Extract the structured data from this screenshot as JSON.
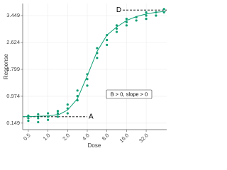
{
  "chart_data": {
    "type": "scatter",
    "x_label": "Dose",
    "y_label": "Response",
    "x_log_base": 2,
    "xlim": [
      0.41,
      66
    ],
    "ylim": [
      -0.05,
      3.82
    ],
    "xticks": [
      0.5,
      {
        "value": 1,
        "label": "1.0"
      },
      {
        "value": 2,
        "label": "2.0"
      },
      {
        "value": 4,
        "label": "4.0"
      },
      {
        "value": 8,
        "label": "8.0"
      },
      {
        "value": 16,
        "label": "16.0"
      },
      {
        "value": 32,
        "label": "32.0"
      }
    ],
    "yticks": [
      0.149,
      0.974,
      1.799,
      2.624,
      3.449
    ],
    "grid": true,
    "color": "#0e9e74",
    "points": {
      "x": [
        0.5,
        0.5,
        0.5,
        0.707,
        0.707,
        0.707,
        1,
        1,
        1,
        1.414,
        1.414,
        1.414,
        2,
        2,
        2,
        2.83,
        2.83,
        2.83,
        4,
        4,
        4,
        5.66,
        5.66,
        5.66,
        8,
        8,
        8,
        11.3,
        11.3,
        11.3,
        16,
        16,
        16,
        22.6,
        22.6,
        32,
        32,
        32,
        45.25,
        45.25,
        60,
        60
      ],
      "y": [
        0.22,
        0.3,
        0.38,
        0.18,
        0.3,
        0.42,
        0.25,
        0.35,
        0.45,
        0.35,
        0.45,
        0.52,
        0.45,
        0.6,
        0.72,
        0.85,
        0.98,
        1.15,
        1.3,
        1.5,
        1.65,
        2.15,
        2.3,
        2.45,
        2.55,
        2.7,
        2.85,
        2.95,
        3.05,
        3.15,
        3.15,
        3.25,
        3.35,
        3.3,
        3.4,
        3.35,
        3.45,
        3.55,
        3.45,
        3.55,
        3.55,
        3.65
      ]
    },
    "curve": {
      "x": [
        0.41,
        0.5,
        1,
        1.5,
        2,
        2.83,
        4,
        5.66,
        8,
        11.3,
        16,
        22.6,
        32,
        45,
        64
      ],
      "y": [
        0.35,
        0.35,
        0.37,
        0.42,
        0.55,
        0.9,
        1.6,
        2.35,
        2.85,
        3.1,
        3.3,
        3.42,
        3.5,
        3.55,
        3.58
      ]
    },
    "reference_lines": [
      {
        "label": "A",
        "value": 0.345,
        "x_range": [
          0.41,
          4.0
        ]
      },
      {
        "label": "D",
        "value": 3.62,
        "x_range": [
          14,
          66
        ]
      }
    ],
    "annotation": "B > 0, slope > 0"
  }
}
